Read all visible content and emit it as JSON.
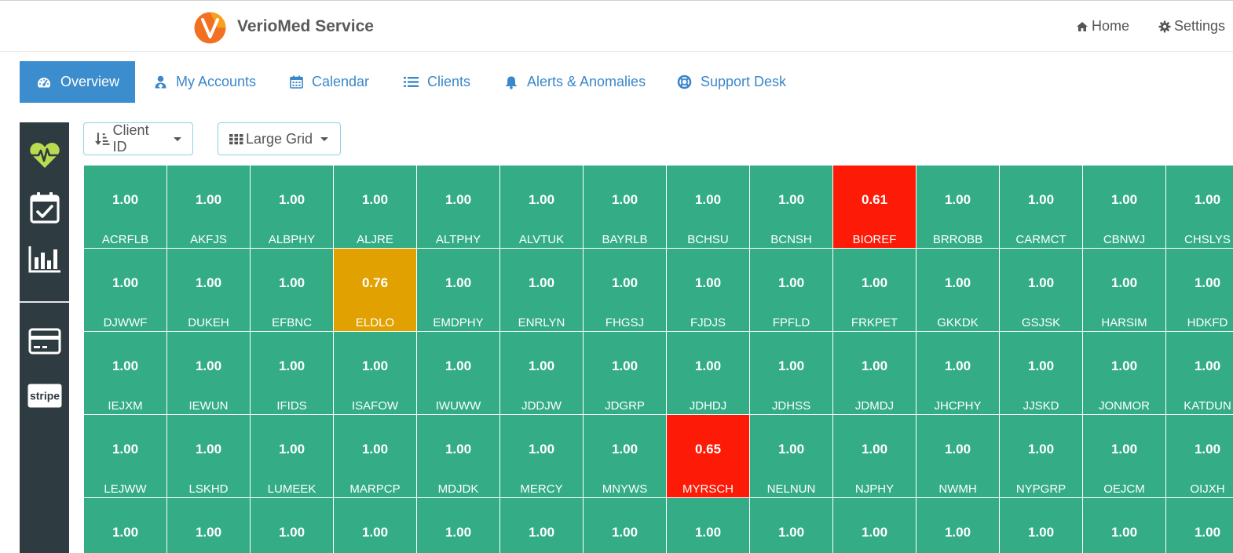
{
  "app": {
    "brand": "VerioMed Service",
    "colors": {
      "accent": "#3c8dcd",
      "ok": "#34ad87",
      "alert": "#fd1b07",
      "warning": "#e1a201",
      "sidebar": "#2e3b40"
    }
  },
  "topnav": {
    "home_label": "Home",
    "settings_label": "Settings",
    "home_icon": "home-icon",
    "settings_icon": "gear-icon"
  },
  "tabs": [
    {
      "label": "Overview",
      "icon": "dashboard-icon",
      "active": true
    },
    {
      "label": "My Accounts",
      "icon": "user-doctor-icon",
      "active": false
    },
    {
      "label": "Calendar",
      "icon": "calendar-icon",
      "active": false
    },
    {
      "label": "Clients",
      "icon": "list-icon",
      "active": false
    },
    {
      "label": "Alerts & Anomalies",
      "icon": "bell-icon",
      "active": false
    },
    {
      "label": "Support Desk",
      "icon": "life-ring-icon",
      "active": false
    }
  ],
  "sidebar": {
    "icons": [
      "heartbeat-icon",
      "calendar-check-icon",
      "bar-chart-icon",
      "credit-card-icon",
      "stripe-icon"
    ],
    "stripe_label": "stripe"
  },
  "controls": {
    "sort_label": "Client ID",
    "view_label": "Large Grid"
  },
  "grid": {
    "cells": [
      {
        "name": "ACRFLB",
        "value": "1.00",
        "status": "ok"
      },
      {
        "name": "AKFJS",
        "value": "1.00",
        "status": "ok"
      },
      {
        "name": "ALBPHY",
        "value": "1.00",
        "status": "ok"
      },
      {
        "name": "ALJRE",
        "value": "1.00",
        "status": "ok"
      },
      {
        "name": "ALTPHY",
        "value": "1.00",
        "status": "ok"
      },
      {
        "name": "ALVTUK",
        "value": "1.00",
        "status": "ok"
      },
      {
        "name": "BAYRLB",
        "value": "1.00",
        "status": "ok"
      },
      {
        "name": "BCHSU",
        "value": "1.00",
        "status": "ok"
      },
      {
        "name": "BCNSH",
        "value": "1.00",
        "status": "ok"
      },
      {
        "name": "BIOREF",
        "value": "0.61",
        "status": "alert"
      },
      {
        "name": "BRROBB",
        "value": "1.00",
        "status": "ok"
      },
      {
        "name": "CARMCT",
        "value": "1.00",
        "status": "ok"
      },
      {
        "name": "CBNWJ",
        "value": "1.00",
        "status": "ok"
      },
      {
        "name": "CHSLYS",
        "value": "1.00",
        "status": "ok"
      },
      {
        "name": "DJWWF",
        "value": "1.00",
        "status": "ok"
      },
      {
        "name": "DUKEH",
        "value": "1.00",
        "status": "ok"
      },
      {
        "name": "EFBNC",
        "value": "1.00",
        "status": "ok"
      },
      {
        "name": "ELDLO",
        "value": "0.76",
        "status": "warning"
      },
      {
        "name": "EMDPHY",
        "value": "1.00",
        "status": "ok"
      },
      {
        "name": "ENRLYN",
        "value": "1.00",
        "status": "ok"
      },
      {
        "name": "FHGSJ",
        "value": "1.00",
        "status": "ok"
      },
      {
        "name": "FJDJS",
        "value": "1.00",
        "status": "ok"
      },
      {
        "name": "FPFLD",
        "value": "1.00",
        "status": "ok"
      },
      {
        "name": "FRKPET",
        "value": "1.00",
        "status": "ok"
      },
      {
        "name": "GKKDK",
        "value": "1.00",
        "status": "ok"
      },
      {
        "name": "GSJSK",
        "value": "1.00",
        "status": "ok"
      },
      {
        "name": "HARSIM",
        "value": "1.00",
        "status": "ok"
      },
      {
        "name": "HDKFD",
        "value": "1.00",
        "status": "ok"
      },
      {
        "name": "IEJXM",
        "value": "1.00",
        "status": "ok"
      },
      {
        "name": "IEWUN",
        "value": "1.00",
        "status": "ok"
      },
      {
        "name": "IFIDS",
        "value": "1.00",
        "status": "ok"
      },
      {
        "name": "ISAFOW",
        "value": "1.00",
        "status": "ok"
      },
      {
        "name": "IWUWW",
        "value": "1.00",
        "status": "ok"
      },
      {
        "name": "JDDJW",
        "value": "1.00",
        "status": "ok"
      },
      {
        "name": "JDGRP",
        "value": "1.00",
        "status": "ok"
      },
      {
        "name": "JDHDJ",
        "value": "1.00",
        "status": "ok"
      },
      {
        "name": "JDHSS",
        "value": "1.00",
        "status": "ok"
      },
      {
        "name": "JDMDJ",
        "value": "1.00",
        "status": "ok"
      },
      {
        "name": "JHCPHY",
        "value": "1.00",
        "status": "ok"
      },
      {
        "name": "JJSKD",
        "value": "1.00",
        "status": "ok"
      },
      {
        "name": "JONMOR",
        "value": "1.00",
        "status": "ok"
      },
      {
        "name": "KATDUN",
        "value": "1.00",
        "status": "ok"
      },
      {
        "name": "LEJWW",
        "value": "1.00",
        "status": "ok"
      },
      {
        "name": "LSKHD",
        "value": "1.00",
        "status": "ok"
      },
      {
        "name": "LUMEEK",
        "value": "1.00",
        "status": "ok"
      },
      {
        "name": "MARPCP",
        "value": "1.00",
        "status": "ok"
      },
      {
        "name": "MDJDK",
        "value": "1.00",
        "status": "ok"
      },
      {
        "name": "MERCY",
        "value": "1.00",
        "status": "ok"
      },
      {
        "name": "MNYWS",
        "value": "1.00",
        "status": "ok"
      },
      {
        "name": "MYRSCH",
        "value": "0.65",
        "status": "alert"
      },
      {
        "name": "NELNUN",
        "value": "1.00",
        "status": "ok"
      },
      {
        "name": "NJPHY",
        "value": "1.00",
        "status": "ok"
      },
      {
        "name": "NWMH",
        "value": "1.00",
        "status": "ok"
      },
      {
        "name": "NYPGRP",
        "value": "1.00",
        "status": "ok"
      },
      {
        "name": "OEJCM",
        "value": "1.00",
        "status": "ok"
      },
      {
        "name": "OIJXH",
        "value": "1.00",
        "status": "ok"
      },
      {
        "name": "",
        "value": "1.00",
        "status": "ok"
      },
      {
        "name": "",
        "value": "1.00",
        "status": "ok"
      },
      {
        "name": "",
        "value": "1.00",
        "status": "ok"
      },
      {
        "name": "",
        "value": "1.00",
        "status": "ok"
      },
      {
        "name": "",
        "value": "1.00",
        "status": "ok"
      },
      {
        "name": "",
        "value": "1.00",
        "status": "ok"
      },
      {
        "name": "",
        "value": "1.00",
        "status": "ok"
      },
      {
        "name": "",
        "value": "1.00",
        "status": "ok"
      },
      {
        "name": "",
        "value": "1.00",
        "status": "ok"
      },
      {
        "name": "",
        "value": "1.00",
        "status": "ok"
      },
      {
        "name": "",
        "value": "1.00",
        "status": "ok"
      },
      {
        "name": "",
        "value": "1.00",
        "status": "ok"
      },
      {
        "name": "",
        "value": "1.00",
        "status": "ok"
      },
      {
        "name": "",
        "value": "1.00",
        "status": "ok"
      }
    ]
  }
}
